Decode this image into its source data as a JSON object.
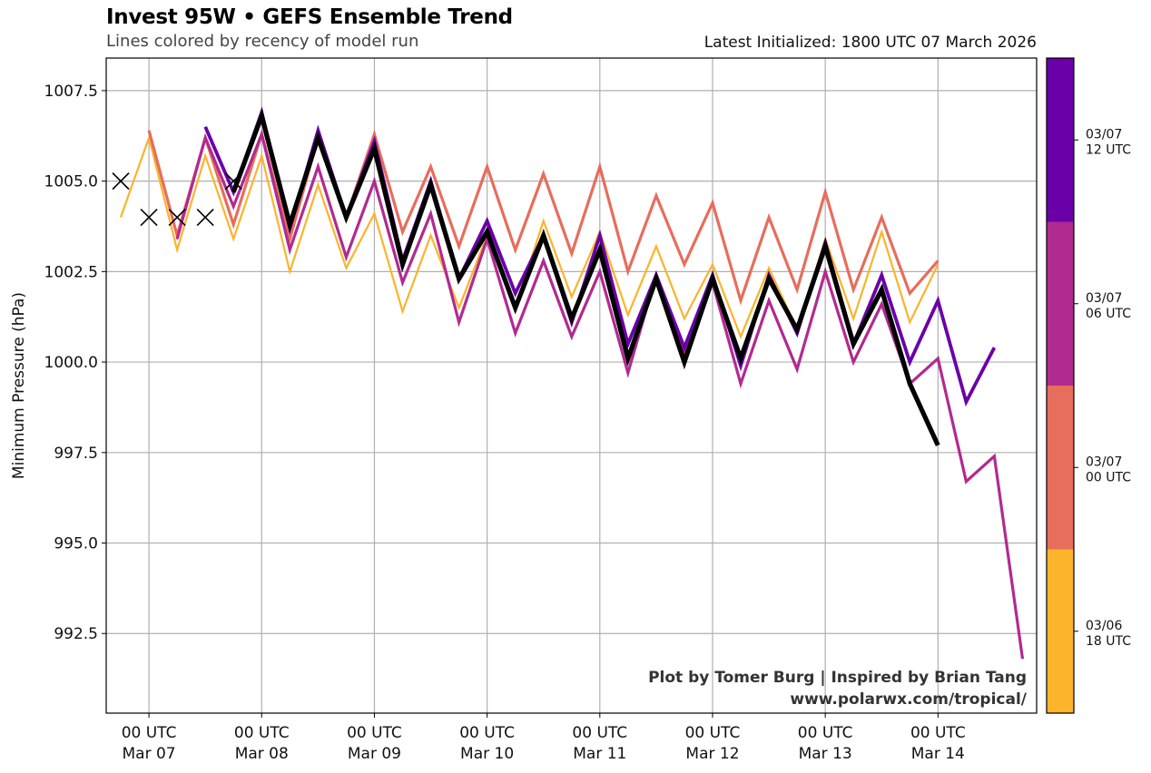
{
  "header": {
    "title": "Invest 95W • GEFS Ensemble Trend",
    "subtitle": "Lines colored by recency of model run",
    "latest_init": "Latest Initialized: 1800 UTC 07 March 2026"
  },
  "credits": {
    "line1": "Plot by Tomer Burg | Inspired by Brian Tang",
    "line2": "www.polarwx.com/tropical/"
  },
  "chart_data": {
    "type": "line",
    "title": "Invest 95W • GEFS Ensemble Trend",
    "subtitle": "Lines colored by recency of model run",
    "xlabel": "",
    "ylabel": "Minimum Pressure (hPa)",
    "x_unit": "hours since 00 UTC Mar 07 2026",
    "xlim": [
      -9.1,
      189
    ],
    "ylim": [
      990.3,
      1008.4
    ],
    "grid": true,
    "x_ticks": [
      {
        "x": 0,
        "line1": "00 UTC",
        "line2": "Mar 07"
      },
      {
        "x": 24,
        "line1": "00 UTC",
        "line2": "Mar 08"
      },
      {
        "x": 48,
        "line1": "00 UTC",
        "line2": "Mar 09"
      },
      {
        "x": 72,
        "line1": "00 UTC",
        "line2": "Mar 10"
      },
      {
        "x": 96,
        "line1": "00 UTC",
        "line2": "Mar 11"
      },
      {
        "x": 120,
        "line1": "00 UTC",
        "line2": "Mar 12"
      },
      {
        "x": 144,
        "line1": "00 UTC",
        "line2": "Mar 13"
      },
      {
        "x": 168,
        "line1": "00 UTC",
        "line2": "Mar 14"
      }
    ],
    "y_ticks": [
      {
        "v": 992.5,
        "label": "992.5"
      },
      {
        "v": 995.0,
        "label": "995.0"
      },
      {
        "v": 997.5,
        "label": "997.5"
      },
      {
        "v": 1000.0,
        "label": "1000.0"
      },
      {
        "v": 1002.5,
        "label": "1002.5"
      },
      {
        "v": 1005.0,
        "label": "1005.0"
      },
      {
        "v": 1007.5,
        "label": "1007.5"
      }
    ],
    "step_hours": 6,
    "series": [
      {
        "name": "03/06 18 UTC",
        "color": "#fbb42b",
        "weight": "thin",
        "start": -6,
        "values": [
          1004.0,
          1006.2,
          1003.1,
          1005.7,
          1003.4,
          1005.7,
          1002.5,
          1004.9,
          1002.6,
          1004.1,
          1001.4,
          1003.5,
          1001.5,
          1003.5,
          1001.5,
          1003.9,
          1001.8,
          1003.6,
          1001.3,
          1003.2,
          1001.2,
          1002.7,
          1000.7,
          1002.6,
          1000.9,
          1003.4,
          1001.2,
          1003.6,
          1001.1,
          1002.7
        ]
      },
      {
        "name": "03/07 00 UTC",
        "color": "#e76d5c",
        "weight": "medium",
        "start": 0,
        "values": [
          1006.4,
          1003.5,
          1006.2,
          1003.8,
          1006.3,
          1003.4,
          1006.2,
          1004.0,
          1006.3,
          1003.6,
          1005.4,
          1003.2,
          1005.4,
          1003.1,
          1005.2,
          1003.0,
          1005.4,
          1002.5,
          1004.6,
          1002.7,
          1004.4,
          1001.7,
          1004.0,
          1002.0,
          1004.7,
          1002.0,
          1004.0,
          1001.9,
          1002.8
        ]
      },
      {
        "name": "03/07 06 UTC",
        "color": "#b12a90",
        "weight": "medium",
        "start": 6,
        "values": [
          1003.4,
          1006.2,
          1004.3,
          1006.3,
          1003.1,
          1005.4,
          1002.9,
          1005.0,
          1002.2,
          1004.1,
          1001.1,
          1003.4,
          1000.8,
          1002.8,
          1000.7,
          1002.5,
          999.7,
          1002.4,
          1000.3,
          1002.2,
          999.4,
          1001.7,
          999.8,
          1002.5,
          1000.0,
          1001.6,
          999.4,
          1000.1,
          996.7,
          997.4,
          991.8
        ]
      },
      {
        "name": "03/07 12 UTC",
        "color": "#6a00a8",
        "weight": "thick",
        "start": 12,
        "values": [
          1006.5,
          1004.7,
          1006.9,
          1003.7,
          1006.4,
          1004.0,
          1006.1,
          1002.8,
          1005.0,
          1002.3,
          1003.9,
          1001.9,
          1003.5,
          1001.1,
          1003.5,
          1000.5,
          1002.4,
          1000.4,
          1002.4,
          999.9,
          1002.4,
          1000.8,
          1003.3,
          1000.5,
          1002.4,
          1000.0,
          1001.7,
          998.9,
          1000.4
        ]
      },
      {
        "name": "03/07 18 UTC",
        "color": "#000000",
        "weight": "thickest",
        "start": 18,
        "values": [
          1004.7,
          1006.8,
          1003.8,
          1006.2,
          1004.0,
          1005.9,
          1002.7,
          1004.9,
          1002.3,
          1003.6,
          1001.5,
          1003.5,
          1001.2,
          1003.1,
          1000.1,
          1002.3,
          1000.0,
          1002.3,
          1000.1,
          1002.3,
          1000.9,
          1003.2,
          1000.5,
          1002.0,
          999.4,
          997.7
        ]
      }
    ],
    "observed": {
      "marker": "x",
      "color": "#000000",
      "points": [
        {
          "x": -6,
          "v": 1005.0
        },
        {
          "x": 0,
          "v": 1004.0
        },
        {
          "x": 6,
          "v": 1004.0
        },
        {
          "x": 12,
          "v": 1004.0
        },
        {
          "x": 18,
          "v": 1005.0
        }
      ]
    },
    "colorbar": {
      "segments": [
        {
          "label_line1": "03/07",
          "label_line2": "12 UTC",
          "color": "#6a00a8"
        },
        {
          "label_line1": "03/07",
          "label_line2": "06 UTC",
          "color": "#b12a90"
        },
        {
          "label_line1": "03/07",
          "label_line2": "00 UTC",
          "color": "#e76d5c"
        },
        {
          "label_line1": "03/06",
          "label_line2": "18 UTC",
          "color": "#fbb42b"
        }
      ]
    },
    "credits": [
      "Plot by Tomer Burg | Inspired by Brian Tang",
      "www.polarwx.com/tropical/"
    ]
  }
}
